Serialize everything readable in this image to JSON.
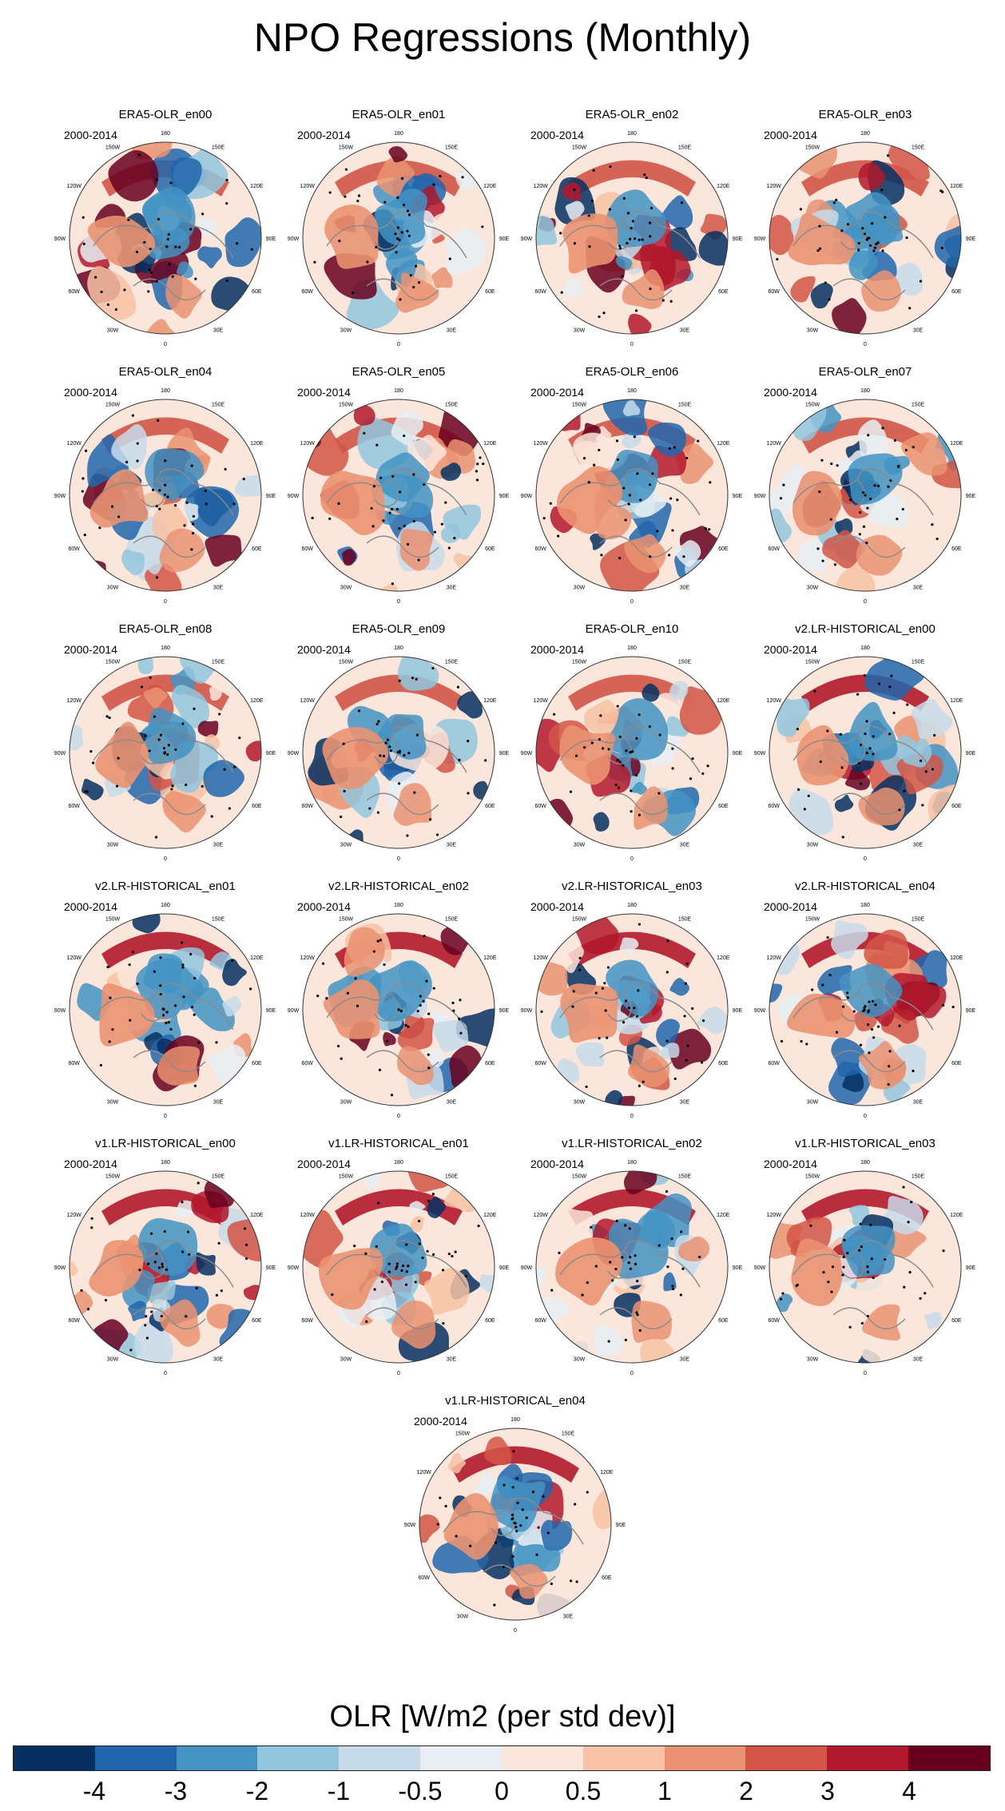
{
  "title": "NPO Regressions (Monthly)",
  "period": "2000-2014",
  "longitude_labels": {
    "n180": "180",
    "n150w": "150W",
    "n150e": "150E",
    "n120w": "120W",
    "n120e": "120E",
    "n90w": "90W",
    "n90e": "90E",
    "n60w": "60W",
    "n60e": "60E",
    "n30w": "30W",
    "n30e": "30E",
    "n0": "0"
  },
  "panels": [
    {
      "name": "ERA5-OLR_en00"
    },
    {
      "name": "ERA5-OLR_en01"
    },
    {
      "name": "ERA5-OLR_en02"
    },
    {
      "name": "ERA5-OLR_en03"
    },
    {
      "name": "ERA5-OLR_en04"
    },
    {
      "name": "ERA5-OLR_en05"
    },
    {
      "name": "ERA5-OLR_en06"
    },
    {
      "name": "ERA5-OLR_en07"
    },
    {
      "name": "ERA5-OLR_en08"
    },
    {
      "name": "ERA5-OLR_en09"
    },
    {
      "name": "ERA5-OLR_en10"
    },
    {
      "name": "v2.LR-HISTORICAL_en00"
    },
    {
      "name": "v2.LR-HISTORICAL_en01"
    },
    {
      "name": "v2.LR-HISTORICAL_en02"
    },
    {
      "name": "v2.LR-HISTORICAL_en03"
    },
    {
      "name": "v2.LR-HISTORICAL_en04"
    },
    {
      "name": "v1.LR-HISTORICAL_en00"
    },
    {
      "name": "v1.LR-HISTORICAL_en01"
    },
    {
      "name": "v1.LR-HISTORICAL_en02"
    },
    {
      "name": "v1.LR-HISTORICAL_en03"
    },
    {
      "name": "v1.LR-HISTORICAL_en04"
    }
  ],
  "colorbar": {
    "label": "OLR [W/m2 (per std dev)]",
    "colors": [
      "#053061",
      "#2166ac",
      "#4393c3",
      "#92c5de",
      "#c6dbe9",
      "#e8eef3",
      "#fbe6dc",
      "#f7c2a5",
      "#ea9271",
      "#d25547",
      "#b2182b",
      "#67001f"
    ],
    "ticks": [
      "-4",
      "-3",
      "-2",
      "-1",
      "-0.5",
      "0",
      "0.5",
      "1",
      "2",
      "3",
      "4"
    ]
  },
  "colors": {
    "coast": "#8a8a8a",
    "stipple": "#000000"
  }
}
